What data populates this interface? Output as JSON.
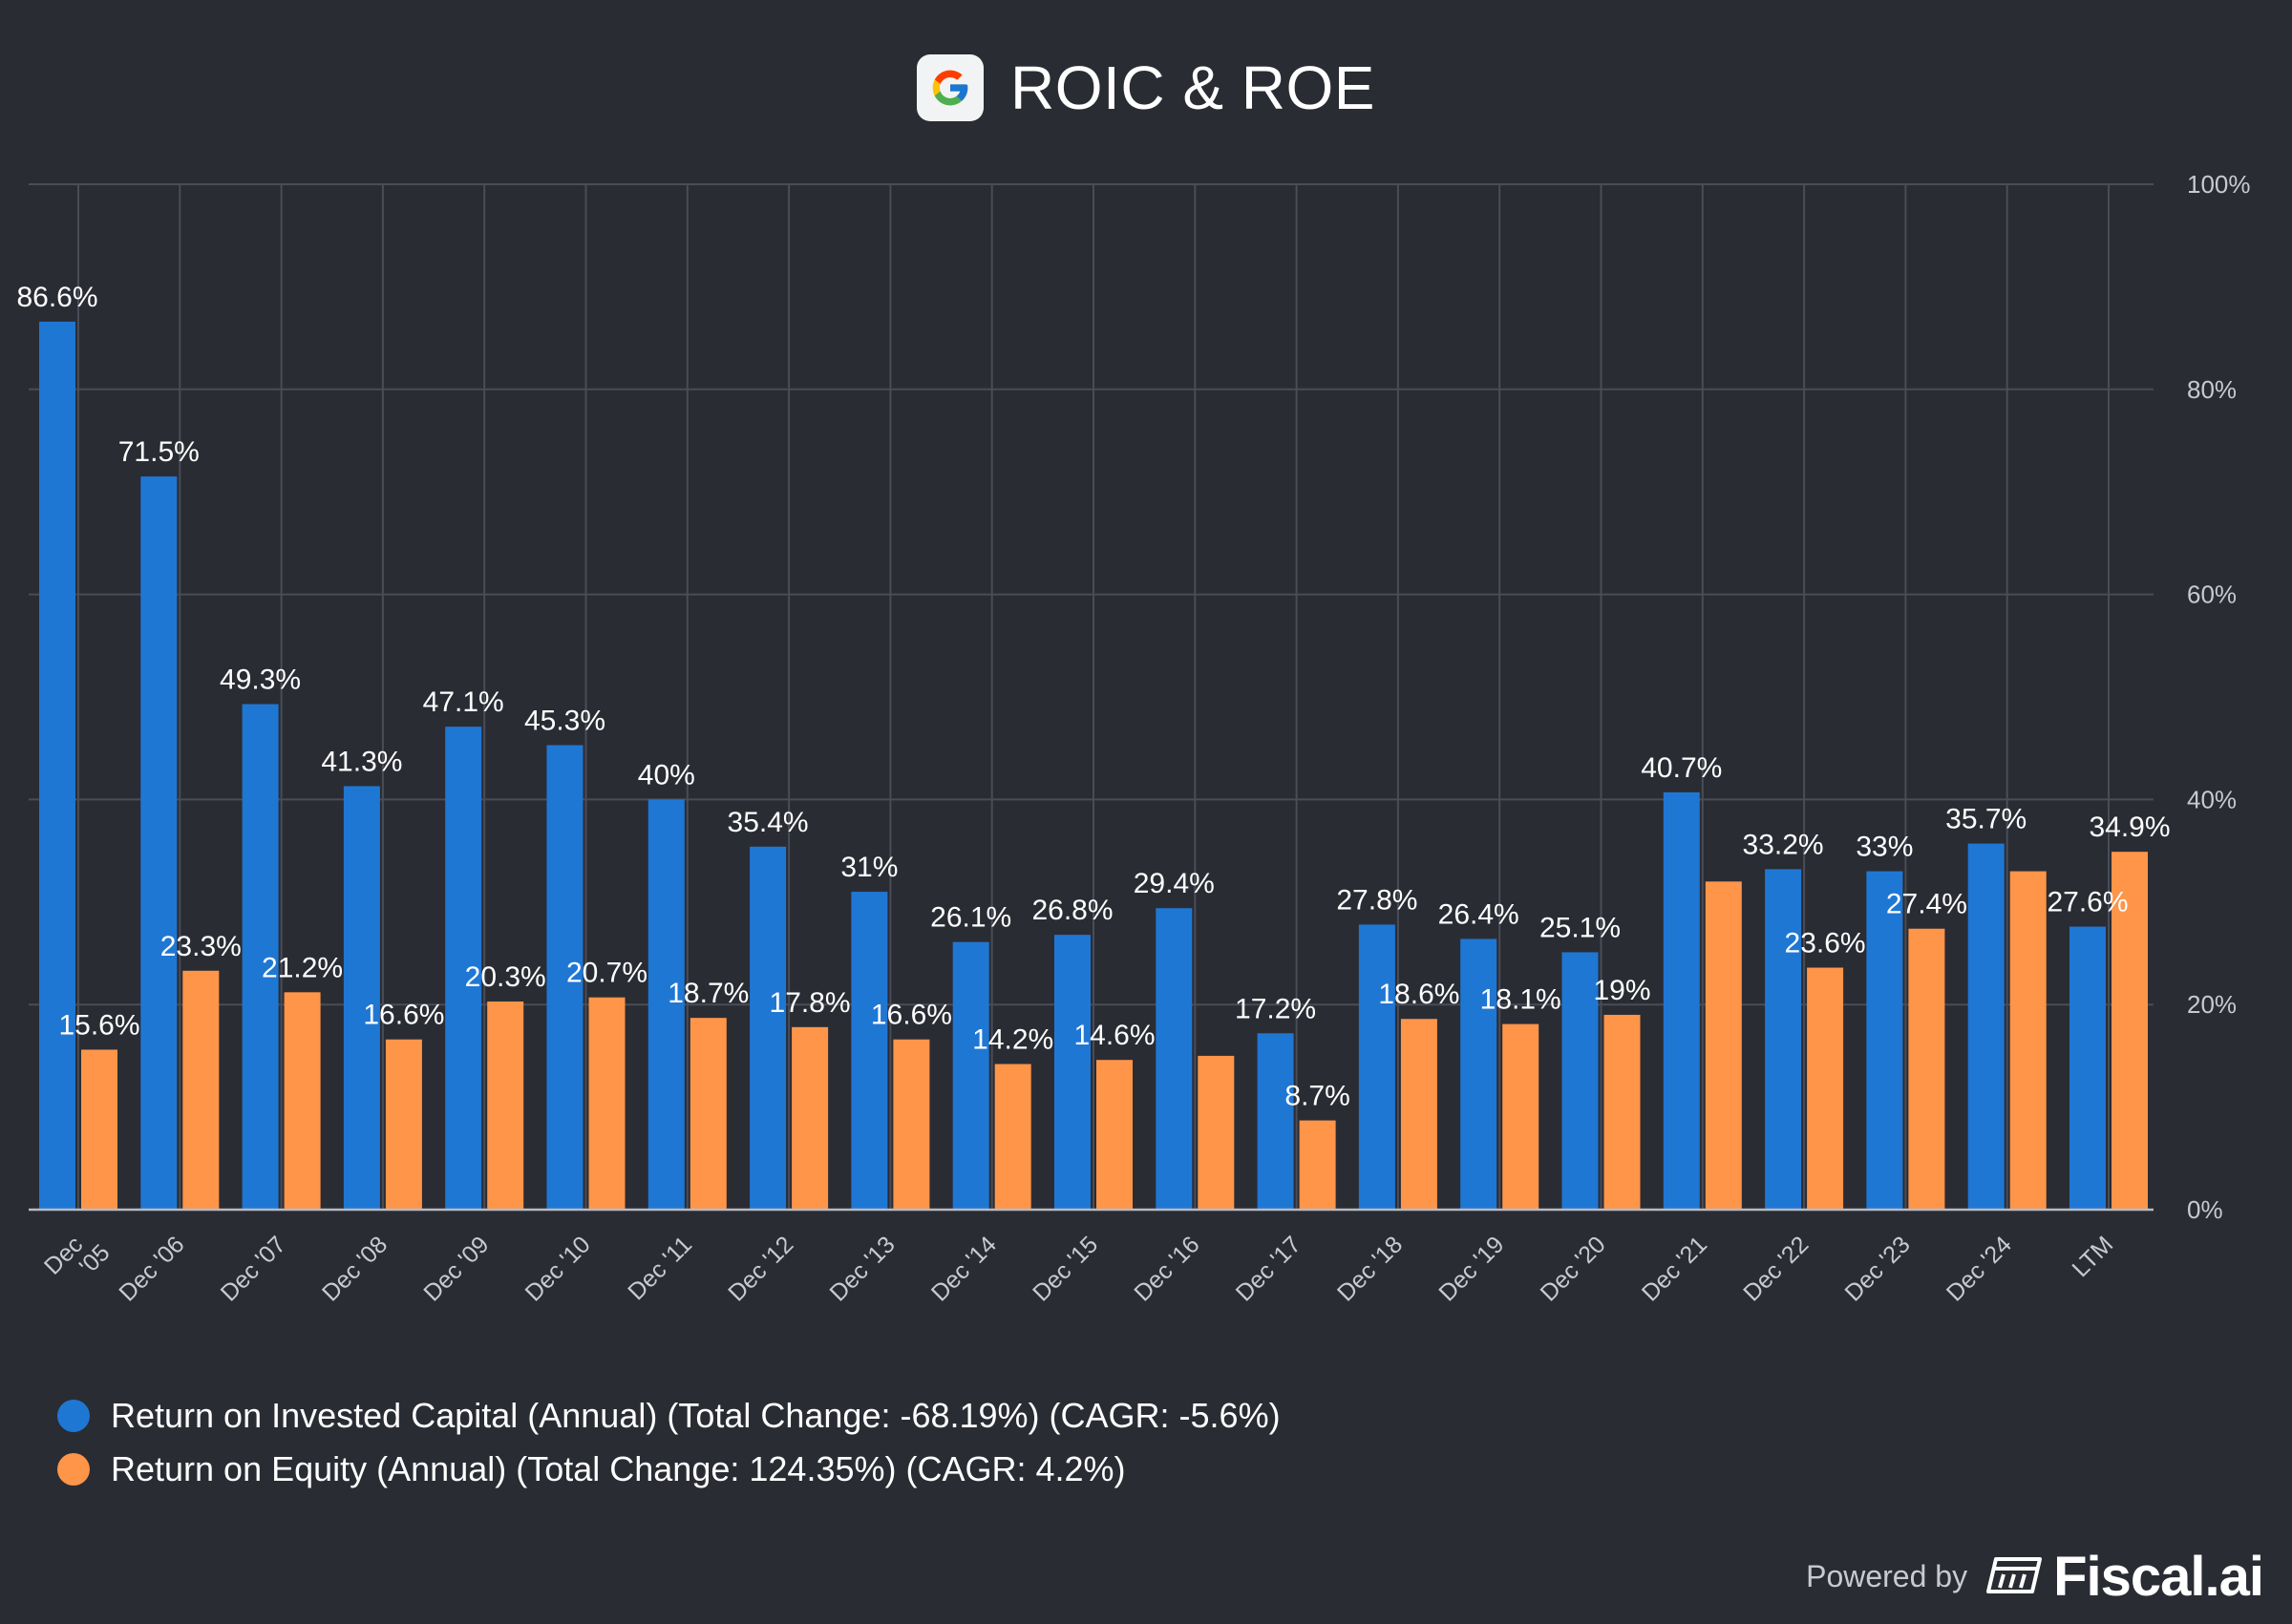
{
  "header": {
    "title": "ROIC & ROE",
    "logo_icon": "google-g-icon"
  },
  "chart_data": {
    "type": "bar",
    "title": "ROIC & ROE",
    "categories": [
      "Dec '05",
      "Dec '06",
      "Dec '07",
      "Dec '08",
      "Dec '09",
      "Dec '10",
      "Dec '11",
      "Dec '12",
      "Dec '13",
      "Dec '14",
      "Dec '15",
      "Dec '16",
      "Dec '17",
      "Dec '18",
      "Dec '19",
      "Dec '20",
      "Dec '21",
      "Dec '22",
      "Dec '23",
      "Dec '24",
      "LTM"
    ],
    "series": [
      {
        "name": "Return on Invested Capital (Annual) (Total Change: -68.19%) (CAGR: -5.6%)",
        "color": "#1f77d4",
        "values": [
          86.6,
          71.5,
          49.3,
          41.3,
          47.1,
          45.3,
          40,
          35.4,
          31,
          26.1,
          26.8,
          29.4,
          17.2,
          27.8,
          26.4,
          25.1,
          40.7,
          33.2,
          33,
          35.7,
          27.6
        ],
        "labels": [
          "86.6%",
          "71.5%",
          "49.3%",
          "41.3%",
          "47.1%",
          "45.3%",
          "40%",
          "35.4%",
          "31%",
          "26.1%",
          "26.8%",
          "29.4%",
          "17.2%",
          "27.8%",
          "26.4%",
          "25.1%",
          "40.7%",
          "33.2%",
          "33%",
          "35.7%",
          "27.6%"
        ]
      },
      {
        "name": "Return on Equity (Annual) (Total Change: 124.35%) (CAGR: 4.2%)",
        "color": "#ff9548",
        "values": [
          15.6,
          23.3,
          21.2,
          16.6,
          20.3,
          20.7,
          18.7,
          17.8,
          16.6,
          14.2,
          14.6,
          15,
          8.7,
          18.6,
          18.1,
          19,
          32,
          23.6,
          27.4,
          33,
          34.9
        ],
        "labels": [
          "15.6%",
          "23.3%",
          "21.2%",
          "16.6%",
          "20.3%",
          "20.7%",
          "18.7%",
          "17.8%",
          "16.6%",
          "14.2%",
          "14.6%",
          "",
          "8.7%",
          "18.6%",
          "18.1%",
          "19%",
          "",
          "23.6%",
          "27.4%",
          "",
          "34.9%"
        ]
      }
    ],
    "ylim": [
      0,
      100
    ],
    "yticks": [
      0,
      20,
      40,
      60,
      80,
      100
    ],
    "ytick_labels": [
      "0%",
      "20%",
      "40%",
      "60%",
      "80%",
      "100%"
    ],
    "y_axis_side": "right",
    "grid": true,
    "legend_position": "bottom-left"
  },
  "legend": {
    "items": [
      {
        "label": "Return on Invested Capital (Annual) (Total Change: -68.19%) (CAGR: -5.6%)",
        "color": "#1f77d4"
      },
      {
        "label": "Return on Equity (Annual) (Total Change: 124.35%) (CAGR: 4.2%)",
        "color": "#ff9548"
      }
    ]
  },
  "footer": {
    "powered_by": "Powered by",
    "brand": "Fiscal.ai",
    "brand_icon": "fiscal-ai-logo-icon"
  }
}
